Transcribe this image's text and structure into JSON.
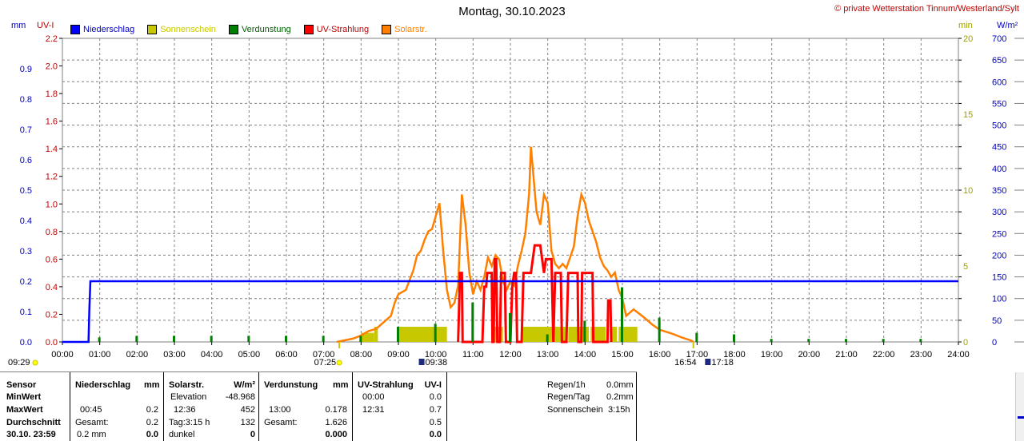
{
  "title": "Montag, 30.10.2023",
  "copyright": "© private Wetterstation Tinnum/Westerland/Sylt",
  "units": {
    "left1": "mm",
    "left2": "UV-I",
    "right1": "min",
    "right2": "W/m²"
  },
  "colors": {
    "niederschlag": "#0000ff",
    "sonnenschein": "#c8c800",
    "verdunstung": "#008000",
    "uv": "#ff0000",
    "solar": "#ff8000",
    "grid": "#808080",
    "axis_uv": "#c00000",
    "axis_min": "#a0a000"
  },
  "legend": [
    {
      "label": "Niederschlag",
      "color": "#0000ff",
      "text_color": "#0000c0"
    },
    {
      "label": "Sonnenschein",
      "color": "#c8c800",
      "text_color": "#c8c800"
    },
    {
      "label": "Verdunstung",
      "color": "#008000",
      "text_color": "#006000"
    },
    {
      "label": "UV-Strahlung",
      "color": "#ff0000",
      "text_color": "#c00000"
    },
    {
      "label": "Solarstr.",
      "color": "#ff8000",
      "text_color": "#ff8000"
    }
  ],
  "chart_data": {
    "type": "line",
    "x_range_hours": [
      0,
      24
    ],
    "x_tick_labels": [
      "00:00",
      "01:00",
      "02:00",
      "03:00",
      "04:00",
      "05:00",
      "06:00",
      "07:00",
      "08:00",
      "09:00",
      "10:00",
      "11:00",
      "12:00",
      "13:00",
      "14:00",
      "15:00",
      "16:00",
      "17:00",
      "18:00",
      "19:00",
      "20:00",
      "21:00",
      "22:00",
      "23:00",
      "24:00"
    ],
    "y_mm": {
      "range": [
        0,
        1.0
      ],
      "ticks": [
        "0.0",
        "0.1",
        "0.2",
        "0.3",
        "0.4",
        "0.5",
        "0.6",
        "0.7",
        "0.8",
        "0.9"
      ]
    },
    "y_uv": {
      "range": [
        0,
        2.2
      ],
      "ticks": [
        "0.0",
        "0.2",
        "0.4",
        "0.6",
        "0.8",
        "1.0",
        "1.2",
        "1.4",
        "1.6",
        "1.8",
        "2.0",
        "2.2"
      ]
    },
    "y_min": {
      "range": [
        0,
        20
      ],
      "ticks": [
        "0",
        "5",
        "10",
        "15",
        "20"
      ]
    },
    "y_wm2": {
      "range": [
        0,
        700
      ],
      "ticks": [
        "0",
        "50",
        "100",
        "150",
        "200",
        "250",
        "300",
        "350",
        "400",
        "450",
        "500",
        "550",
        "600",
        "650",
        "700"
      ]
    },
    "grid": true,
    "series": [
      {
        "name": "Niederschlag",
        "axis": "mm",
        "points": [
          [
            0,
            0
          ],
          [
            0.7,
            0
          ],
          [
            0.72,
            0.1
          ],
          [
            0.75,
            0.2
          ],
          [
            24,
            0.2
          ]
        ]
      },
      {
        "name": "Verdunstung",
        "axis": "min",
        "ticks_hours": [
          1,
          2,
          3,
          4,
          5,
          6,
          7,
          8,
          9,
          10,
          11,
          12,
          13,
          14,
          15,
          16,
          17,
          18,
          19,
          20,
          21,
          22,
          23
        ],
        "values": [
          0.3,
          0.4,
          0.4,
          0.4,
          0.4,
          0.4,
          0.4,
          0.4,
          1.0,
          1.2,
          2.6,
          1.9,
          0.5,
          1.4,
          3.6,
          1.6,
          0.6,
          0.5,
          0.2,
          0.2,
          0.2,
          0.2,
          0.2
        ]
      },
      {
        "name": "Sonnenschein",
        "axis": "min",
        "blocks": [
          [
            8.0,
            8.35,
            0.6
          ],
          [
            8.35,
            8.45,
            1.0
          ],
          [
            9.0,
            10.3,
            1.0
          ],
          [
            11.5,
            11.8,
            1.0
          ],
          [
            12.3,
            13.5,
            1.0
          ],
          [
            13.55,
            14.1,
            1.0
          ],
          [
            14.15,
            14.55,
            1.0
          ],
          [
            14.7,
            14.85,
            1.0
          ],
          [
            14.9,
            15.4,
            1.0
          ]
        ]
      },
      {
        "name": "UV-Strahlung",
        "axis": "uv",
        "points": [
          [
            10.6,
            0
          ],
          [
            10.65,
            0.5
          ],
          [
            10.7,
            0.5
          ],
          [
            10.72,
            0
          ],
          [
            11.25,
            0
          ],
          [
            11.3,
            0.4
          ],
          [
            11.35,
            0.4
          ],
          [
            11.38,
            0.5
          ],
          [
            11.5,
            0.5
          ],
          [
            11.52,
            0
          ],
          [
            11.55,
            0
          ],
          [
            11.58,
            0.6
          ],
          [
            11.62,
            0.6
          ],
          [
            11.65,
            0
          ],
          [
            11.72,
            0
          ],
          [
            11.75,
            0.5
          ],
          [
            11.85,
            0.5
          ],
          [
            11.88,
            0
          ],
          [
            12.0,
            0
          ],
          [
            12.05,
            0.4
          ],
          [
            12.1,
            0.5
          ],
          [
            12.15,
            0.5
          ],
          [
            12.18,
            0
          ],
          [
            12.3,
            0
          ],
          [
            12.35,
            0.5
          ],
          [
            12.55,
            0.5
          ],
          [
            12.6,
            0.6
          ],
          [
            12.65,
            0.7
          ],
          [
            12.8,
            0.7
          ],
          [
            12.85,
            0.6
          ],
          [
            12.9,
            0.5
          ],
          [
            12.95,
            0.6
          ],
          [
            13.1,
            0.6
          ],
          [
            13.15,
            0
          ],
          [
            13.2,
            0.5
          ],
          [
            13.35,
            0.5
          ],
          [
            13.38,
            0
          ],
          [
            13.5,
            0
          ],
          [
            13.55,
            0.5
          ],
          [
            13.8,
            0.5
          ],
          [
            13.82,
            0
          ],
          [
            13.9,
            0
          ],
          [
            13.92,
            0.5
          ],
          [
            14.2,
            0.5
          ],
          [
            14.22,
            0
          ],
          [
            14.6,
            0
          ],
          [
            14.62,
            0.3
          ],
          [
            14.68,
            0.3
          ],
          [
            14.7,
            0
          ]
        ]
      },
      {
        "name": "Solarstr.",
        "axis": "wm2",
        "points": [
          [
            7.35,
            0
          ],
          [
            7.8,
            8
          ],
          [
            8.0,
            15
          ],
          [
            8.2,
            25
          ],
          [
            8.4,
            30
          ],
          [
            8.6,
            45
          ],
          [
            8.8,
            60
          ],
          [
            8.9,
            90
          ],
          [
            9.0,
            110
          ],
          [
            9.2,
            120
          ],
          [
            9.4,
            165
          ],
          [
            9.5,
            200
          ],
          [
            9.6,
            210
          ],
          [
            9.7,
            235
          ],
          [
            9.8,
            255
          ],
          [
            9.9,
            260
          ],
          [
            10.0,
            290
          ],
          [
            10.1,
            320
          ],
          [
            10.2,
            210
          ],
          [
            10.3,
            120
          ],
          [
            10.4,
            80
          ],
          [
            10.5,
            90
          ],
          [
            10.6,
            130
          ],
          [
            10.7,
            340
          ],
          [
            10.8,
            270
          ],
          [
            10.9,
            160
          ],
          [
            11.0,
            110
          ],
          [
            11.1,
            140
          ],
          [
            11.2,
            120
          ],
          [
            11.3,
            150
          ],
          [
            11.4,
            195
          ],
          [
            11.5,
            175
          ],
          [
            11.6,
            200
          ],
          [
            11.7,
            190
          ],
          [
            11.8,
            140
          ],
          [
            11.9,
            120
          ],
          [
            12.0,
            140
          ],
          [
            12.1,
            130
          ],
          [
            12.2,
            175
          ],
          [
            12.3,
            210
          ],
          [
            12.4,
            250
          ],
          [
            12.5,
            340
          ],
          [
            12.55,
            450
          ],
          [
            12.6,
            400
          ],
          [
            12.7,
            300
          ],
          [
            12.8,
            270
          ],
          [
            12.9,
            340
          ],
          [
            13.0,
            320
          ],
          [
            13.1,
            210
          ],
          [
            13.2,
            180
          ],
          [
            13.3,
            170
          ],
          [
            13.4,
            180
          ],
          [
            13.5,
            170
          ],
          [
            13.6,
            195
          ],
          [
            13.7,
            220
          ],
          [
            13.8,
            290
          ],
          [
            13.9,
            340
          ],
          [
            14.0,
            320
          ],
          [
            14.1,
            280
          ],
          [
            14.2,
            255
          ],
          [
            14.3,
            230
          ],
          [
            14.4,
            195
          ],
          [
            14.5,
            175
          ],
          [
            14.6,
            165
          ],
          [
            14.7,
            150
          ],
          [
            14.8,
            160
          ],
          [
            14.9,
            120
          ],
          [
            15.0,
            100
          ],
          [
            15.1,
            60
          ],
          [
            15.3,
            75
          ],
          [
            15.6,
            55
          ],
          [
            15.8,
            40
          ],
          [
            16.0,
            28
          ],
          [
            16.3,
            20
          ],
          [
            16.6,
            10
          ],
          [
            16.85,
            3
          ],
          [
            16.9,
            0
          ]
        ]
      }
    ]
  },
  "bottom_markers": {
    "sunrise_left": "09:29",
    "sunrise_time": "07:25",
    "max_time": "09:38",
    "sunset_time": "16:54",
    "moon_time": "17:18"
  },
  "table": {
    "col_sensor": [
      "Sensor",
      "MinWert",
      "MaxWert",
      "Durchschnitt",
      "30.10. 23:59"
    ],
    "niederschlag": {
      "header": "Niederschlag",
      "unit": "mm",
      "rows": [
        [
          "",
          ""
        ],
        [
          "00:45",
          "0.2"
        ],
        [
          "Gesamt:",
          "0.2"
        ],
        [
          "0.2 mm",
          "0.0"
        ]
      ]
    },
    "solar": {
      "header": "Solarstr.",
      "unit": "W/m²",
      "rows": [
        [
          "Elevation",
          "-48.968"
        ],
        [
          "12:36",
          "452"
        ],
        [
          "Tag:3:15 h",
          "132"
        ],
        [
          "dunkel",
          "0"
        ]
      ]
    },
    "verdunstung": {
      "header": "Verdunstung",
      "unit": "mm",
      "rows": [
        [
          "",
          ""
        ],
        [
          "13:00",
          "0.178"
        ],
        [
          "Gesamt:",
          "1.626"
        ],
        [
          "",
          "0.000"
        ]
      ]
    },
    "uv": {
      "header": "UV-Strahlung",
      "unit": "UV-I",
      "rows": [
        [
          "00:00",
          "0.0"
        ],
        [
          "12:31",
          "0.7"
        ],
        [
          "",
          "0.5"
        ],
        [
          "",
          "0.0"
        ]
      ]
    },
    "summary": [
      {
        "label": "Regen/1h",
        "value": "0.0mm"
      },
      {
        "label": "Regen/Tag",
        "value": "0.2mm"
      },
      {
        "label": "Sonnenschein",
        "value": "3:15h"
      }
    ]
  }
}
